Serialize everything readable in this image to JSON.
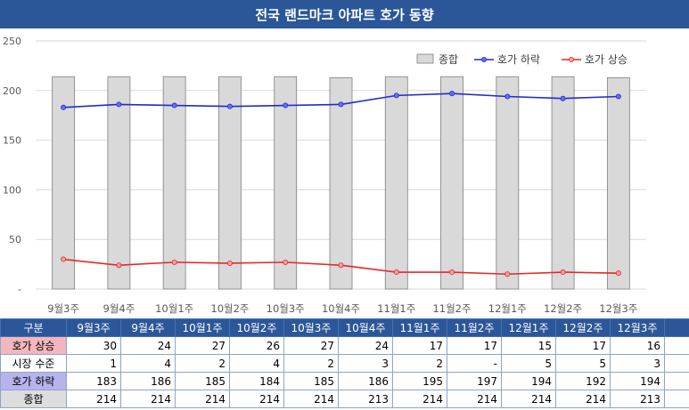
{
  "title": "전국 랜드마크 아파트 호가 동향",
  "chart_data": {
    "type": "bar",
    "categories": [
      "9월3주",
      "9월4주",
      "10월1주",
      "10월2주",
      "10월3주",
      "10월4주",
      "11월1주",
      "11월2주",
      "12월1주",
      "12월2주",
      "12월3주"
    ],
    "ylim": [
      0,
      250
    ],
    "yticks": [
      "-",
      "50",
      "100",
      "150",
      "200",
      "250"
    ],
    "grid": true,
    "legend_position": "top-right",
    "series": [
      {
        "name": "종합",
        "kind": "bar",
        "color": "#d9d9d9",
        "values": [
          214,
          214,
          214,
          214,
          214,
          213,
          214,
          214,
          214,
          214,
          213
        ]
      },
      {
        "name": "호가 하락",
        "kind": "line",
        "color": "#1f2bd1",
        "values": [
          183,
          186,
          185,
          184,
          185,
          186,
          195,
          197,
          194,
          192,
          194
        ]
      },
      {
        "name": "호가 상승",
        "kind": "line",
        "color": "#e8262b",
        "values": [
          30,
          24,
          27,
          26,
          27,
          24,
          17,
          17,
          15,
          17,
          16
        ]
      }
    ]
  },
  "table": {
    "header_label": "구분",
    "columns": [
      "9월3주",
      "9월4주",
      "10월1주",
      "10월2주",
      "10월3주",
      "10월4주",
      "11월1주",
      "11월2주",
      "12월1주",
      "12월2주",
      "12월3주"
    ],
    "rows": [
      {
        "label": "호가 상승",
        "values": [
          "30",
          "24",
          "27",
          "26",
          "27",
          "24",
          "17",
          "17",
          "15",
          "17",
          "16"
        ]
      },
      {
        "label": "시장 수준",
        "values": [
          "1",
          "4",
          "2",
          "4",
          "2",
          "3",
          "2",
          "-",
          "5",
          "5",
          "3"
        ]
      },
      {
        "label": "호가 하락",
        "values": [
          "183",
          "186",
          "185",
          "184",
          "185",
          "186",
          "195",
          "197",
          "194",
          "192",
          "194"
        ]
      },
      {
        "label": "종합",
        "values": [
          "214",
          "214",
          "214",
          "214",
          "214",
          "213",
          "214",
          "214",
          "214",
          "214",
          "213"
        ]
      }
    ]
  }
}
